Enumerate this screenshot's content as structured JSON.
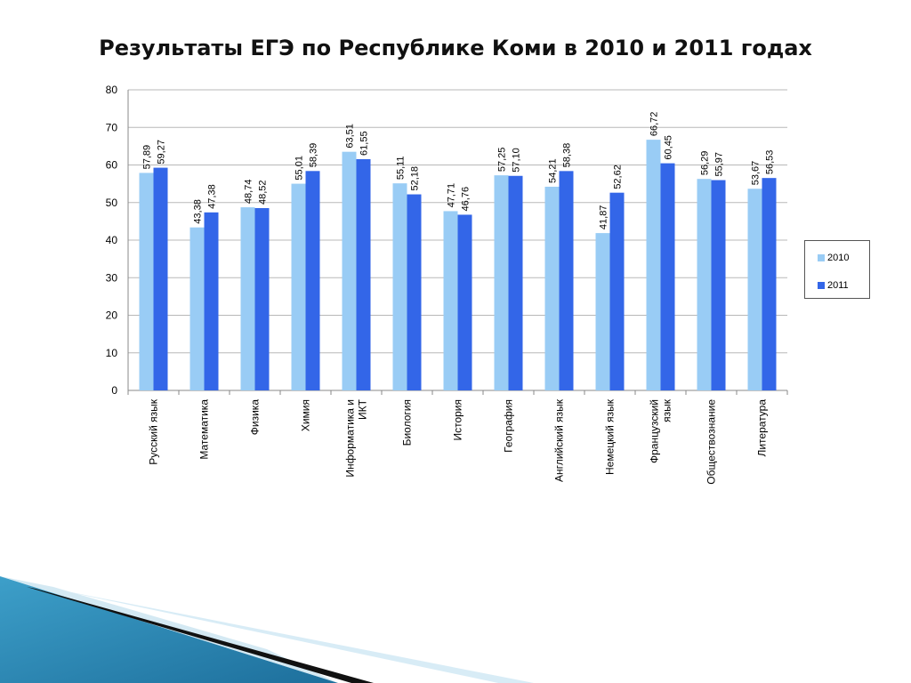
{
  "chart_data": {
    "type": "bar",
    "title": "Результаты ЕГЭ по Республике Коми в 2010 и 2011 годах",
    "categories": [
      [
        "Русский язык"
      ],
      [
        "Математика"
      ],
      [
        "Физика"
      ],
      [
        "Химия"
      ],
      [
        "Информатика и",
        "ИКТ"
      ],
      [
        "Биология"
      ],
      [
        "История"
      ],
      [
        "География"
      ],
      [
        "Английский язык"
      ],
      [
        "Немецкий язык"
      ],
      [
        "Французский",
        "язык"
      ],
      [
        "Обществознание"
      ],
      [
        "Литература"
      ]
    ],
    "series": [
      {
        "name": "2010",
        "color": "#99ccf5",
        "values": [
          57.89,
          43.38,
          48.74,
          55.01,
          63.51,
          55.11,
          47.71,
          57.25,
          54.21,
          41.87,
          66.72,
          56.29,
          53.67
        ],
        "labels": [
          "57,89",
          "43,38",
          "48,74",
          "55,01",
          "63,51",
          "55,11",
          "47,71",
          "57,25",
          "54,21",
          "41,87",
          "66,72",
          "56,29",
          "53,67"
        ]
      },
      {
        "name": "2011",
        "color": "#3366e8",
        "values": [
          59.27,
          47.38,
          48.52,
          58.39,
          61.55,
          52.18,
          46.76,
          57.1,
          58.38,
          52.62,
          60.45,
          55.97,
          56.53
        ],
        "labels": [
          "59,27",
          "47,38",
          "48,52",
          "58,39",
          "61,55",
          "52,18",
          "46,76",
          "57,10",
          "58,38",
          "52,62",
          "60,45",
          "55,97",
          "56,53"
        ]
      }
    ],
    "ylim": [
      0,
      80
    ],
    "yticks": [
      0,
      10,
      20,
      30,
      40,
      50,
      60,
      70,
      80
    ],
    "grid": true,
    "legend_position": "right"
  }
}
